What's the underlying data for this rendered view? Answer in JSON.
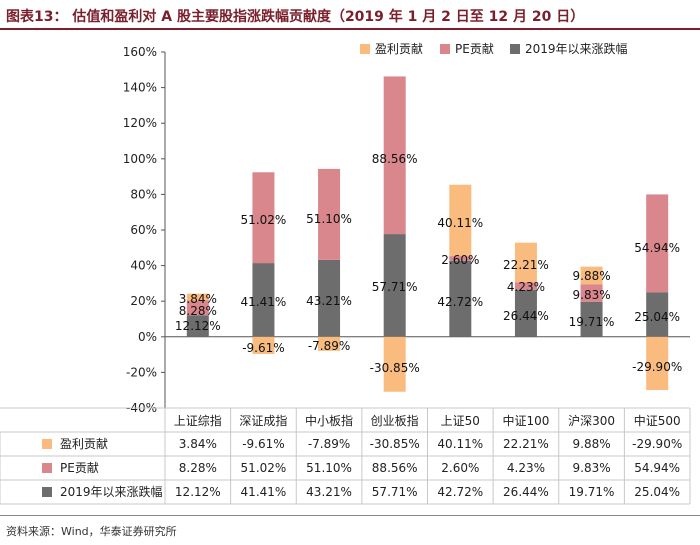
{
  "header": {
    "title": "图表13：  估值和盈利对 A 股主要股指涨跌幅贡献度（2019 年 1 月 2 日至 12 月 20 日）"
  },
  "source": "资料来源：Wind，华泰证券研究所",
  "colors": {
    "profit": "#f9bb7e",
    "pe": "#d9868c",
    "growth": "#6d6d6d",
    "title": "#7a1f2b"
  },
  "chart_data": {
    "type": "bar",
    "stacked": true,
    "categories": [
      "上证综指",
      "深证成指",
      "中小板指",
      "创业板指",
      "上证50",
      "中证100",
      "沪深300",
      "中证500"
    ],
    "series": [
      {
        "name": "盈利贡献",
        "values": [
          3.84,
          -9.61,
          -7.89,
          -30.85,
          40.11,
          22.21,
          9.88,
          -29.9
        ],
        "labels": [
          "3.84%",
          "-9.61%",
          "-7.89%",
          "-30.85%",
          "40.11%",
          "22.21%",
          "9.88%",
          "-29.90%"
        ]
      },
      {
        "name": "PE贡献",
        "values": [
          8.28,
          51.02,
          51.1,
          88.56,
          2.6,
          4.23,
          9.83,
          54.94
        ],
        "labels": [
          "8.28%",
          "51.02%",
          "51.10%",
          "88.56%",
          "2.60%",
          "4.23%",
          "9.83%",
          "54.94%"
        ]
      },
      {
        "name": "2019年以来涨跌幅",
        "values": [
          12.12,
          41.41,
          43.21,
          57.71,
          42.72,
          26.44,
          19.71,
          25.04
        ],
        "labels": [
          "12.12%",
          "41.41%",
          "43.21%",
          "57.71%",
          "42.72%",
          "26.44%",
          "19.71%",
          "25.04%"
        ]
      }
    ],
    "ylim": [
      -40,
      160
    ],
    "yticks": [
      -40,
      -20,
      0,
      20,
      40,
      60,
      80,
      100,
      120,
      140,
      160
    ],
    "ytick_labels": [
      "-40%",
      "-20%",
      "0%",
      "20%",
      "40%",
      "60%",
      "80%",
      "100%",
      "120%",
      "140%",
      "160%"
    ],
    "legend_position": "top",
    "grid": false,
    "data_table": true
  }
}
